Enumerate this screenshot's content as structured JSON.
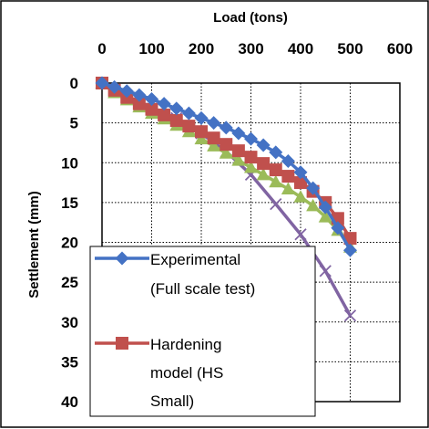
{
  "chart_data": {
    "type": "line",
    "xlabel": "Load (tons)",
    "ylabel": "Settlement (mm)",
    "xlim": [
      0,
      600
    ],
    "ylim": [
      0,
      40
    ],
    "y_inverted": true,
    "x_axis_position": "top",
    "x_ticks": [
      "0",
      "100",
      "200",
      "300",
      "400",
      "500",
      "600"
    ],
    "y_ticks": [
      "0",
      "5",
      "10",
      "15",
      "20",
      "25",
      "30",
      "35",
      "40"
    ],
    "grid": "dotted",
    "legend_placement": "bottom-left",
    "series": [
      {
        "name": "Experimental (Full scale test)",
        "legend_lines": [
          "Experimental",
          "(Full scale test)"
        ],
        "color": "#4472C4",
        "marker": "diamond",
        "x": [
          0,
          25,
          50,
          75,
          100,
          125,
          150,
          175,
          200,
          225,
          250,
          275,
          300,
          325,
          350,
          375,
          400,
          425,
          450,
          475,
          500
        ],
        "y": [
          0,
          0.5,
          1.0,
          1.5,
          2.0,
          2.6,
          3.2,
          3.8,
          4.4,
          5.0,
          5.6,
          6.3,
          7.0,
          7.8,
          8.7,
          9.8,
          11.2,
          13.2,
          15.6,
          18.2,
          21.0
        ]
      },
      {
        "name": "Hardening model (HS Small)",
        "legend_lines": [
          "Hardening",
          "model (HS",
          "Small)"
        ],
        "color": "#C0504D",
        "marker": "square",
        "x": [
          0,
          25,
          50,
          75,
          100,
          125,
          150,
          175,
          200,
          225,
          250,
          275,
          300,
          325,
          350,
          375,
          400,
          425,
          450,
          475,
          500
        ],
        "y": [
          0,
          0.9,
          1.8,
          2.6,
          3.3,
          4.0,
          4.7,
          5.4,
          6.1,
          6.9,
          7.7,
          8.5,
          9.3,
          10.1,
          10.9,
          11.7,
          12.5,
          13.6,
          15.0,
          17.0,
          19.5
        ]
      },
      {
        "name": "",
        "color": "#9BBB59",
        "marker": "triangle",
        "x": [
          0,
          25,
          50,
          75,
          100,
          125,
          150,
          175,
          200,
          225,
          250,
          275,
          300,
          325,
          350,
          375,
          400,
          425,
          450,
          475,
          500
        ],
        "y": [
          0,
          1.2,
          2.1,
          3.0,
          3.8,
          4.5,
          5.3,
          6.1,
          7.0,
          7.9,
          8.8,
          9.7,
          10.6,
          11.5,
          12.4,
          13.3,
          14.3,
          15.4,
          16.8,
          18.5,
          20.6
        ]
      },
      {
        "name": "",
        "color": "#8064A2",
        "marker": "x",
        "x": [
          0,
          50,
          100,
          150,
          200,
          250,
          300,
          350,
          400,
          450,
          500
        ],
        "y": [
          0,
          1.8,
          3.2,
          4.4,
          6.3,
          8.6,
          11.5,
          15.2,
          19.0,
          23.6,
          29.2
        ]
      }
    ]
  }
}
